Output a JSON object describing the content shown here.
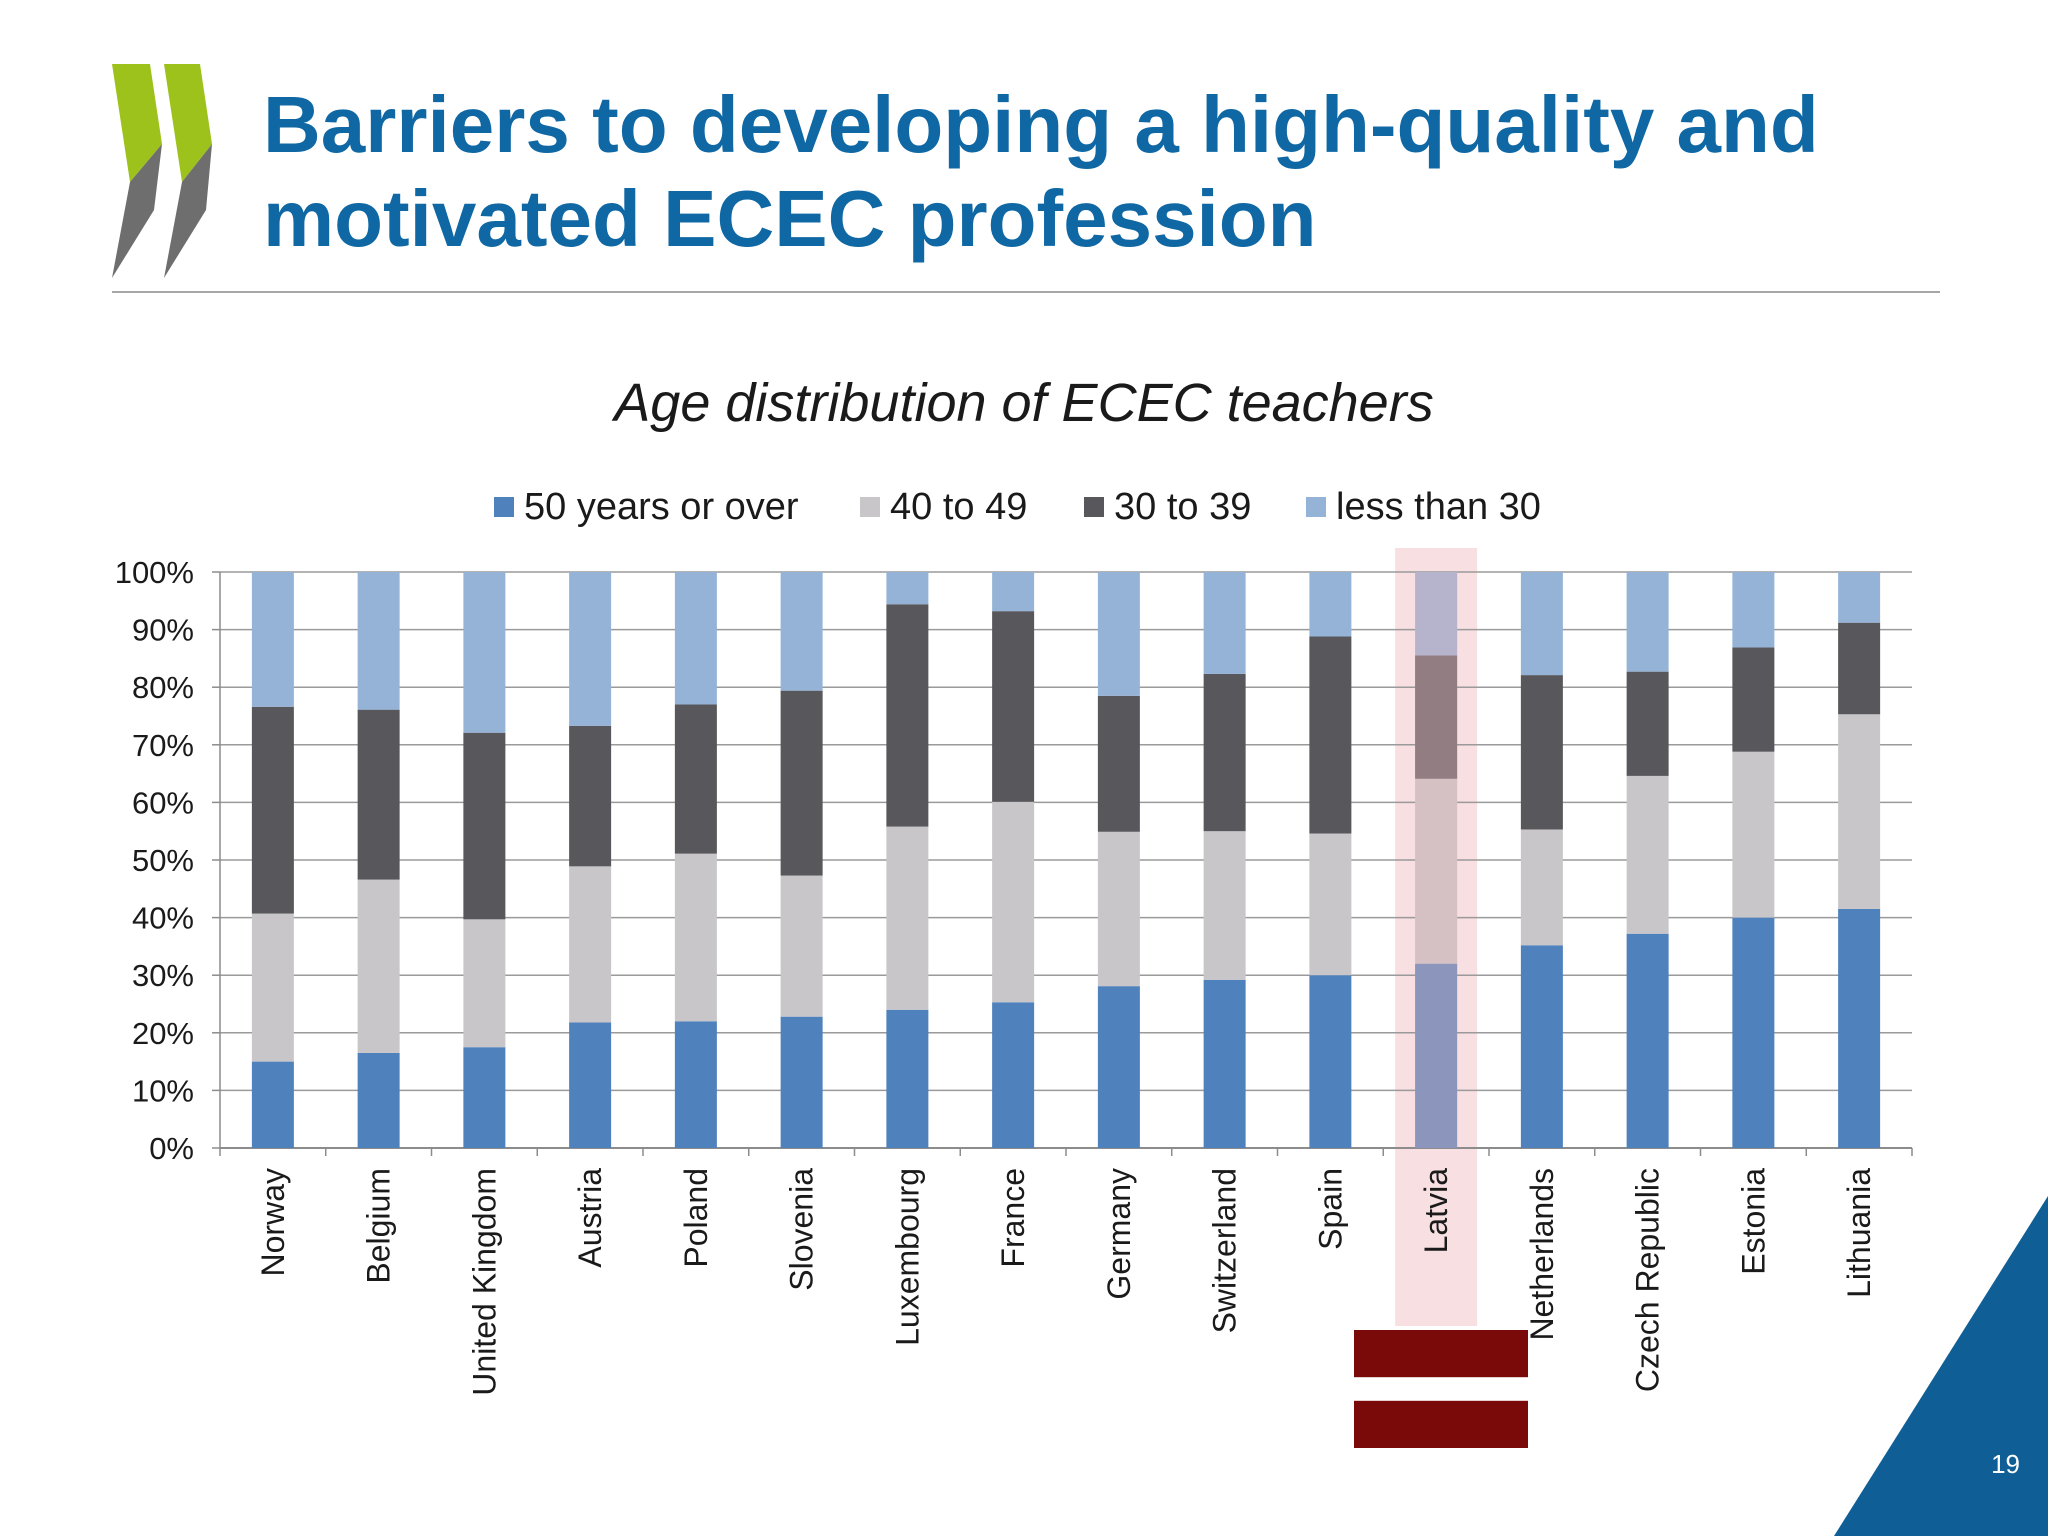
{
  "slide": {
    "title_line1": "Barriers to developing a high-quality and",
    "title_line2": "motivated ECEC profession",
    "page_number": "19",
    "colors": {
      "title": "#0f68a4",
      "logo_green": "#9dc21b",
      "logo_gray": "#6e6e6e",
      "corner_blue": "#0f5f96",
      "highlight": "#f2c9cf",
      "flag_red": "#7a0a0a"
    },
    "decorations": [
      "oecd-chevron-logo",
      "latvia-flag-icon",
      "corner-triangle"
    ]
  },
  "chart_data": {
    "type": "bar",
    "stacked": true,
    "title": "Age distribution of ECEC teachers",
    "xlabel": "",
    "ylabel": "",
    "ylim": [
      0,
      100
    ],
    "yticks": [
      "0%",
      "10%",
      "20%",
      "30%",
      "40%",
      "50%",
      "60%",
      "70%",
      "80%",
      "90%",
      "100%"
    ],
    "grid": true,
    "legend_position": "top",
    "highlight_category": "Latvia",
    "categories": [
      "Norway",
      "Belgium",
      "United Kingdom",
      "Austria",
      "Poland",
      "Slovenia",
      "Luxembourg",
      "France",
      "Germany",
      "Switzerland",
      "Spain",
      "Latvia",
      "Netherlands",
      "Czech Republic",
      "Estonia",
      "Lithuania"
    ],
    "series": [
      {
        "name": "50 years or over",
        "color": "#4f81bd",
        "values": [
          15,
          16.5,
          17.5,
          21.8,
          22,
          22.8,
          24,
          25.3,
          28.1,
          29.2,
          30,
          32,
          35.2,
          37.2,
          40,
          41.5
        ]
      },
      {
        "name": "40 to 49",
        "color": "#c8c6c9",
        "values": [
          25.7,
          30.1,
          22.2,
          27.1,
          29.1,
          24.5,
          31.8,
          34.8,
          26.8,
          25.8,
          24.6,
          32.1,
          20.1,
          27.4,
          28.8,
          33.8
        ]
      },
      {
        "name": "30 to 39",
        "color": "#58575b",
        "values": [
          35.9,
          29.5,
          32.4,
          24.4,
          25.9,
          32.1,
          38.6,
          33.1,
          23.6,
          27.3,
          34.2,
          21.4,
          26.8,
          18.1,
          18.1,
          15.9
        ]
      },
      {
        "name": "less than 30",
        "color": "#95b3d7",
        "values": [
          23.4,
          23.9,
          27.9,
          26.7,
          23,
          20.6,
          5.6,
          6.8,
          21.5,
          17.7,
          11.2,
          14.5,
          17.9,
          17.3,
          13.1,
          8.8
        ]
      }
    ]
  }
}
